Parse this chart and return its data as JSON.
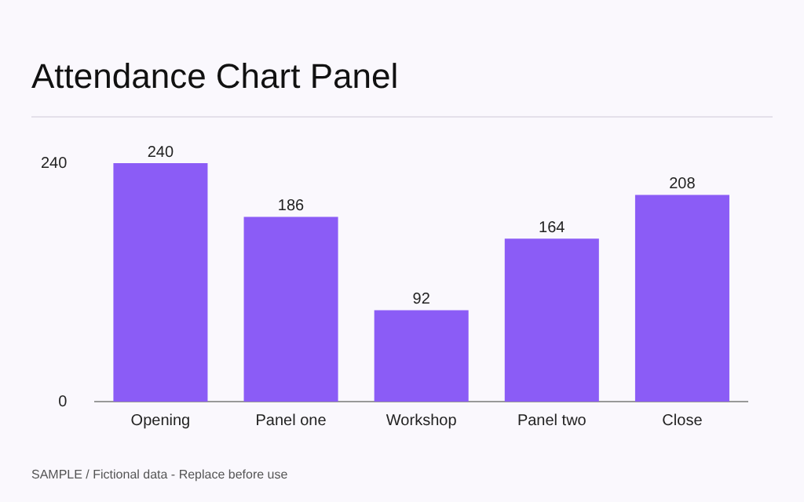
{
  "chart_data": {
    "type": "bar",
    "title": "Attendance Chart Panel",
    "categories": [
      "Opening",
      "Panel one",
      "Workshop",
      "Panel two",
      "Close"
    ],
    "values": [
      240,
      186,
      92,
      164,
      208
    ],
    "color": "#8b5cf6",
    "ylim": [
      0,
      240
    ],
    "yticks": [
      0,
      240
    ],
    "grid": false,
    "legend": false,
    "data_labels": true,
    "annotations": [
      "SAMPLE / Fictional data - Replace before use"
    ]
  }
}
